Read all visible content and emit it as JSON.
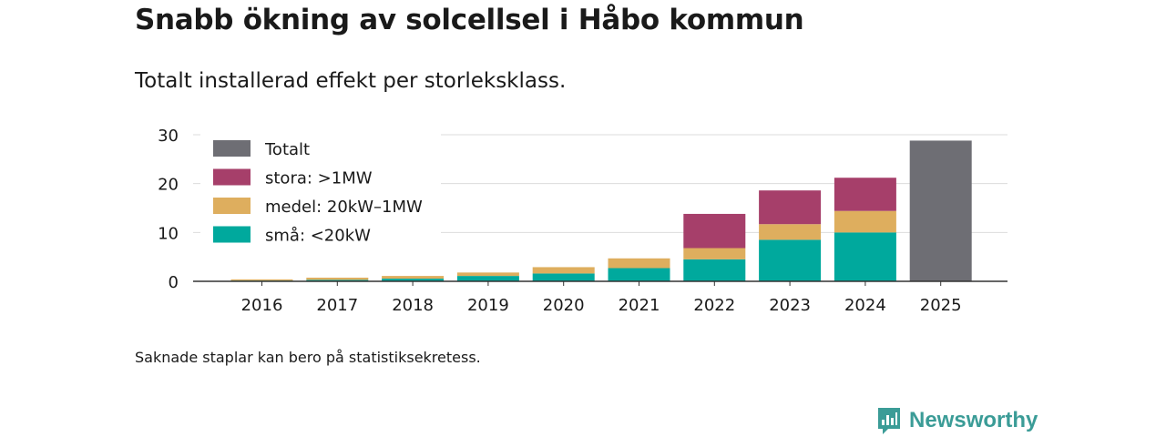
{
  "header": {
    "title": "Snabb ökning av solcellsel i Håbo kommun",
    "subtitle": "Totalt installerad effekt per storleksklass."
  },
  "footer": {
    "note": "Saknade staplar kan bero på statistiksekretess.",
    "brand": "Newsworthy",
    "brand_icon": "newsworthy-logo-icon"
  },
  "chart_data": {
    "type": "bar",
    "stacked": true,
    "title": "",
    "xlabel": "",
    "ylabel": "",
    "categories": [
      "2016",
      "2017",
      "2018",
      "2019",
      "2020",
      "2021",
      "2022",
      "2023",
      "2024",
      "2025"
    ],
    "ylim": [
      0,
      30
    ],
    "yticks": [
      0,
      10,
      20,
      30
    ],
    "grid": true,
    "legend_position": "top-left",
    "series": [
      {
        "name": "små: <20kW",
        "color": "#00a99d",
        "values": [
          0.15,
          0.3,
          0.55,
          1.1,
          1.6,
          2.7,
          4.5,
          8.5,
          10.0,
          null
        ]
      },
      {
        "name": "medel: 20kW–1MW",
        "color": "#deae5e",
        "values": [
          0.25,
          0.45,
          0.55,
          0.7,
          1.3,
          2.0,
          2.3,
          3.2,
          4.4,
          null
        ]
      },
      {
        "name": "stora: >1MW",
        "color": "#a63f6a",
        "values": [
          null,
          null,
          null,
          null,
          null,
          null,
          7.0,
          6.9,
          6.8,
          null
        ]
      },
      {
        "name": "Totalt",
        "color": "#6e6e74",
        "values": [
          null,
          null,
          null,
          null,
          null,
          null,
          null,
          null,
          null,
          28.8
        ]
      }
    ],
    "legend_order": [
      "Totalt",
      "stora: >1MW",
      "medel: 20kW–1MW",
      "små: <20kW"
    ]
  }
}
